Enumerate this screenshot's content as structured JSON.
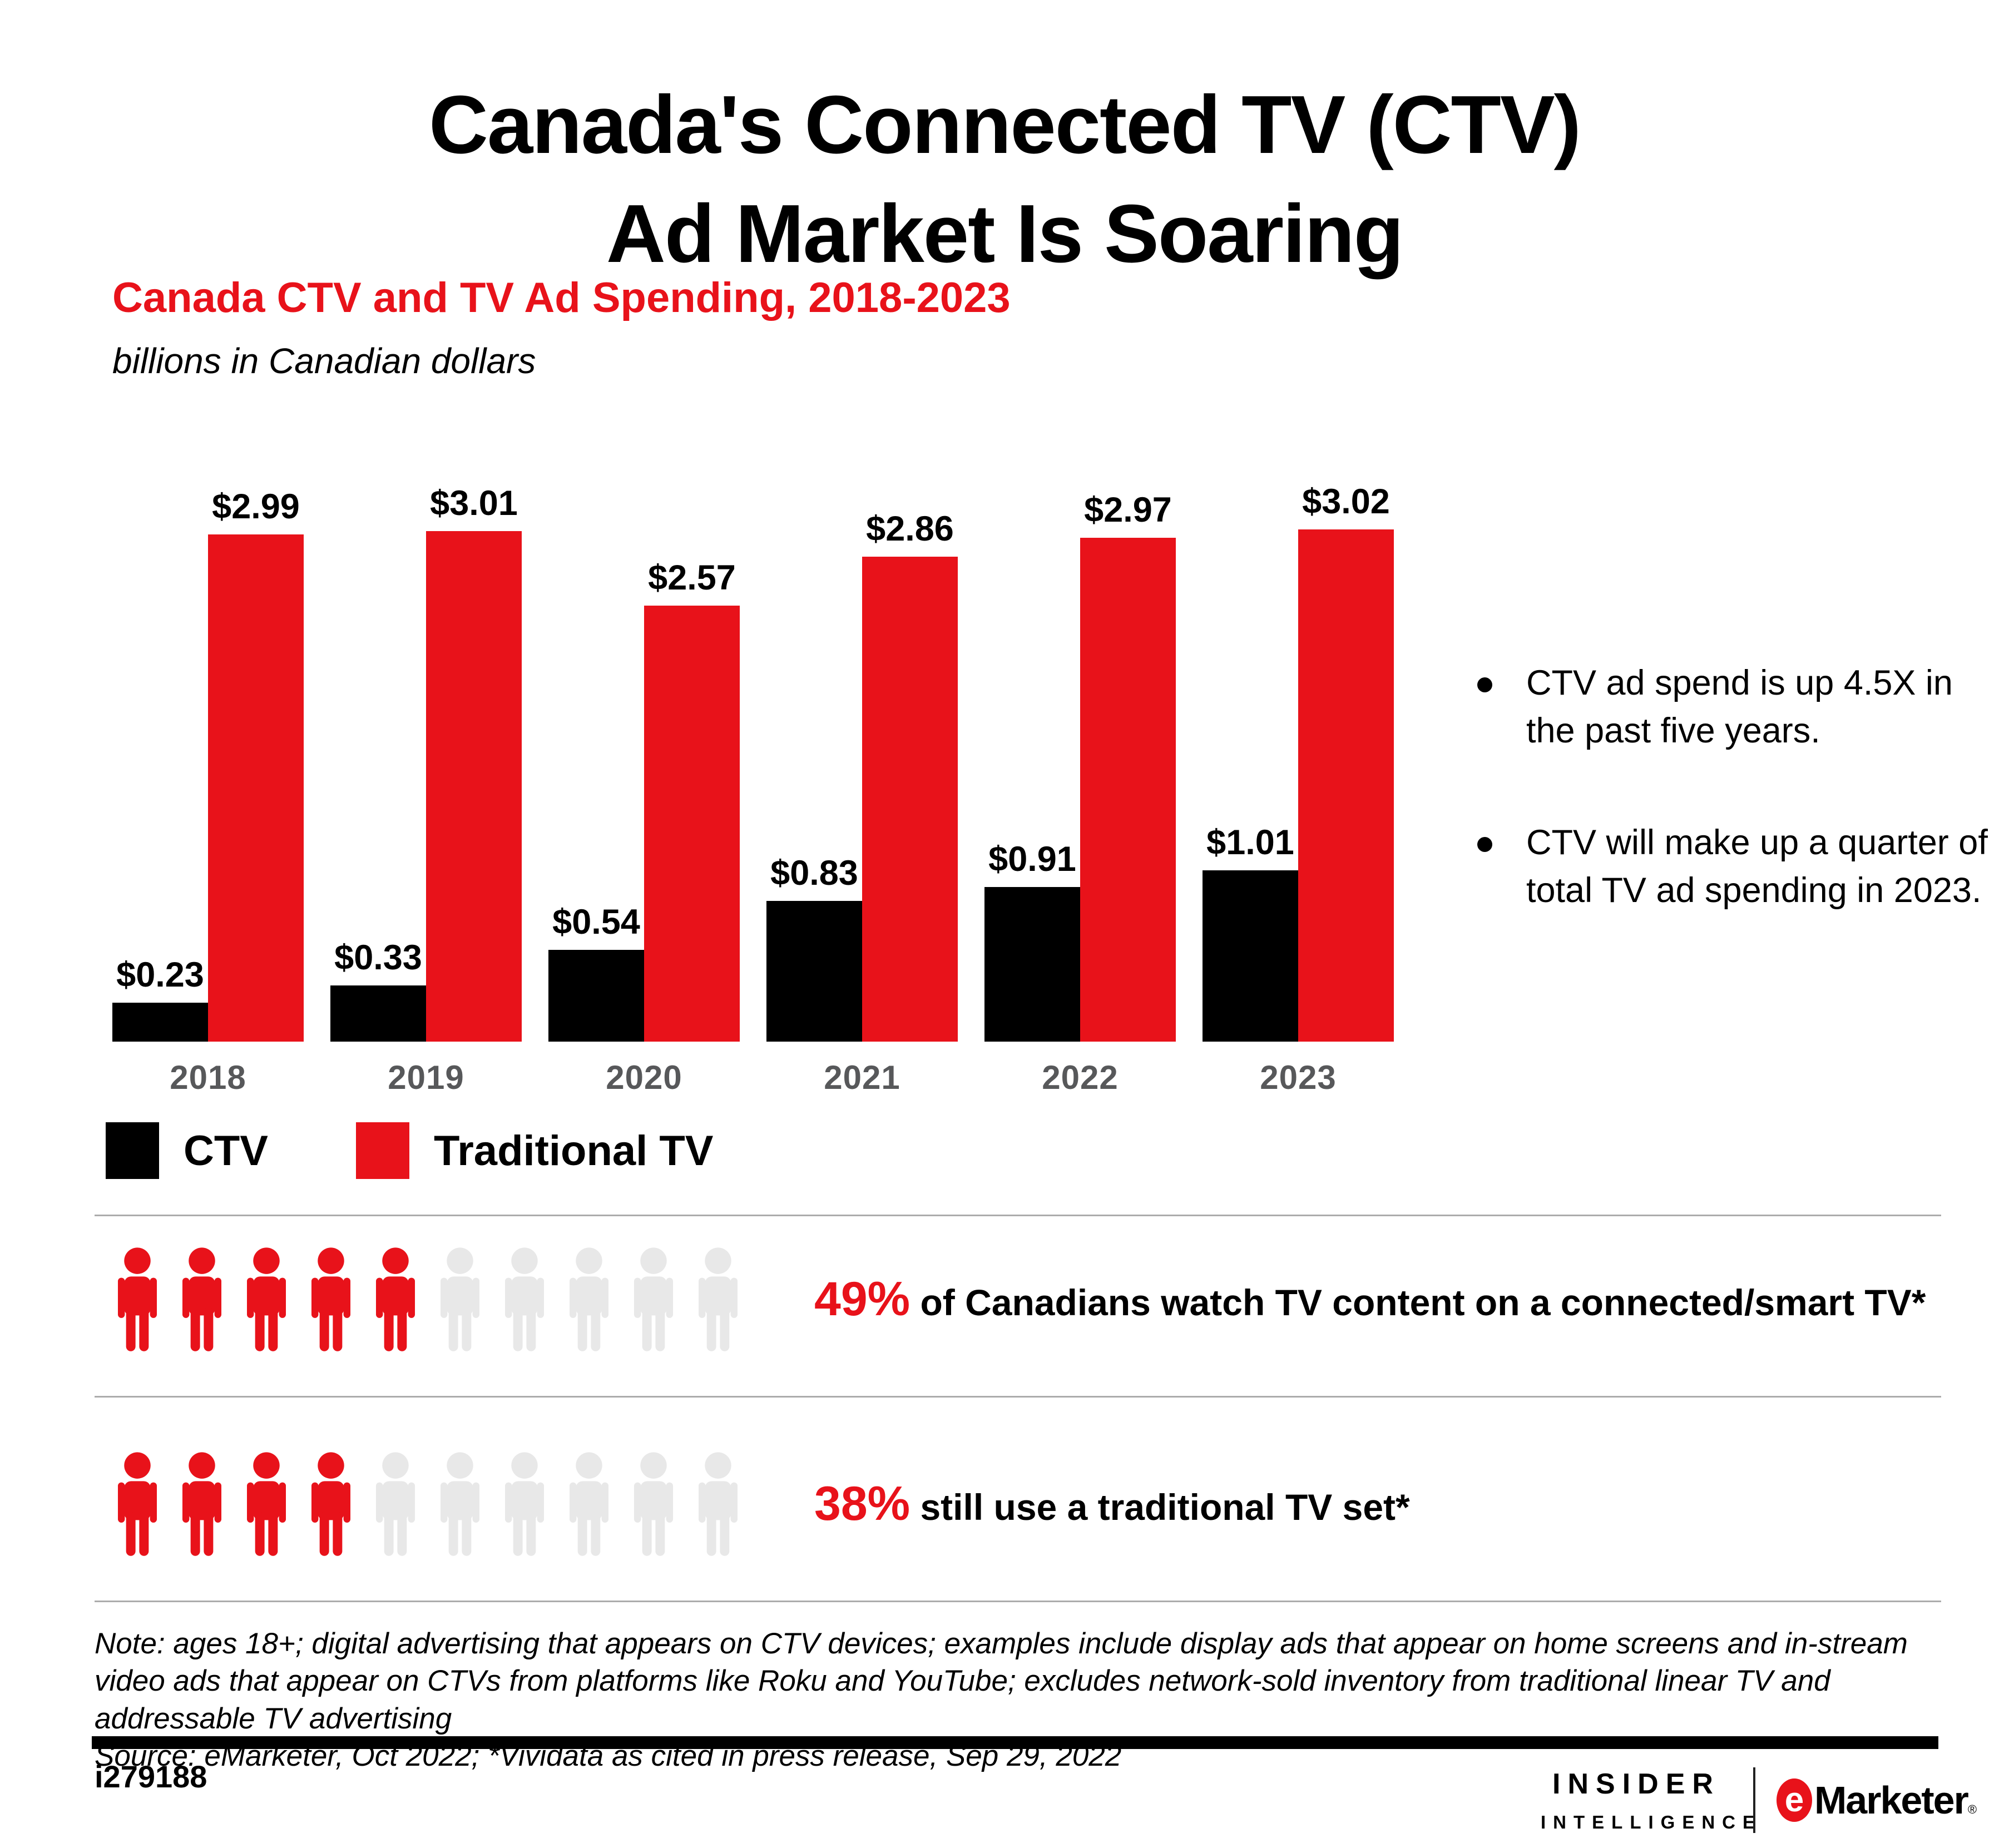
{
  "header": {
    "title_line1": "Canada's Connected TV (CTV)",
    "title_line2": "Ad Market Is Soaring"
  },
  "chart_header": {
    "title": "Canada CTV and TV Ad Spending, 2018-2023",
    "subtitle": "billions in Canadian dollars"
  },
  "chart_data": {
    "type": "bar",
    "title": "Canada CTV and TV Ad Spending, 2018-2023",
    "unit": "billions in Canadian dollars",
    "categories": [
      "2018",
      "2019",
      "2020",
      "2021",
      "2022",
      "2023"
    ],
    "series": [
      {
        "name": "CTV",
        "color": "#000000",
        "values": [
          0.23,
          0.33,
          0.54,
          0.83,
          0.91,
          1.01
        ],
        "labels": [
          "$0.23",
          "$0.33",
          "$0.54",
          "$0.83",
          "$0.91",
          "$1.01"
        ]
      },
      {
        "name": "Traditional TV",
        "color": "#E8121A",
        "values": [
          2.99,
          3.01,
          2.57,
          2.86,
          2.97,
          3.02
        ],
        "labels": [
          "$2.99",
          "$3.01",
          "$2.57",
          "$2.86",
          "$2.97",
          "$3.02"
        ]
      }
    ],
    "ylim": [
      0,
      3.02
    ],
    "grid": false,
    "value_labels": true,
    "legend_position": "bottom-left"
  },
  "bullets": [
    "CTV ad spend is up 4.5X in the past five years.",
    "CTV will make up a quarter of total TV ad spending in 2023."
  ],
  "legend": [
    {
      "label": "CTV",
      "color": "#000000"
    },
    {
      "label": "Traditional TV",
      "color": "#E8121A"
    }
  ],
  "stats": [
    {
      "percent": "49%",
      "text": " of Canadians watch TV content on a connected/smart TV*",
      "fill_percent": 49,
      "icons_total": 10
    },
    {
      "percent": "38%",
      "text": " still use a traditional TV set*",
      "fill_percent": 38,
      "icons_total": 10
    }
  ],
  "note": {
    "note_text": "Note: ages 18+; digital advertising that appears on CTV devices; examples include display ads that appear on home screens and in-stream video ads that appear on CTVs from platforms like Roku and YouTube; excludes network-sold inventory from traditional linear TV and addressable TV advertising",
    "source_text": "Source: eMarketer, Oct 2022; *Vividata as cited in press release, Sep 29, 2022"
  },
  "footer": {
    "chart_id": "i279188",
    "brand_left_line1": "INSIDER",
    "brand_left_line2": "INTELLIGENCE",
    "brand_right_e": "e",
    "brand_right_name": "Marketer",
    "registered_mark": "®"
  },
  "colors": {
    "accent_red": "#E8121A",
    "bar_black": "#000000",
    "icon_gray": "#E8E8E8",
    "year_gray": "#57585A",
    "divider_gray": "#ACACAC"
  }
}
